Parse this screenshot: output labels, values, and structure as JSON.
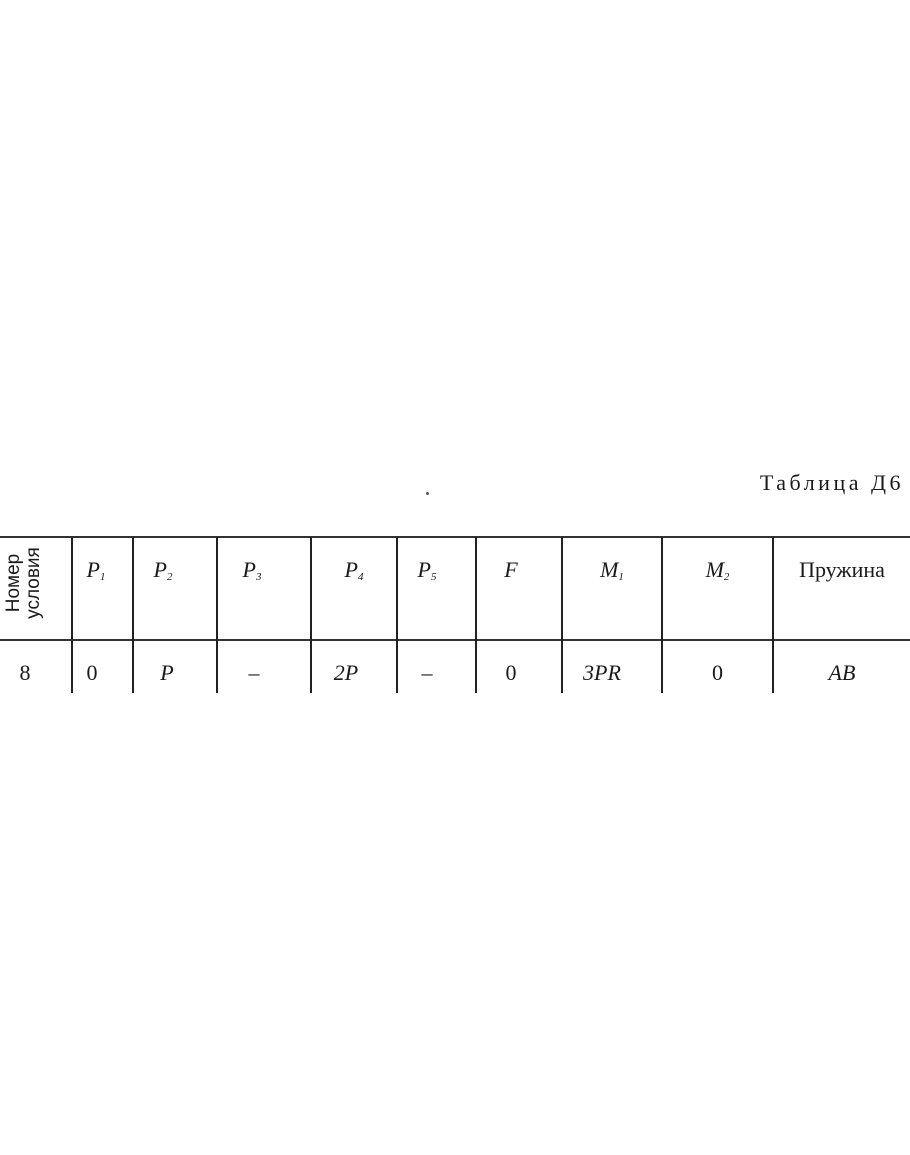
{
  "table_title": "Таблица Д6",
  "header": {
    "condition_number": [
      "Номер",
      "условия"
    ],
    "columns": [
      {
        "base": "P",
        "sub": "1"
      },
      {
        "base": "P",
        "sub": "2"
      },
      {
        "base": "P",
        "sub": "3"
      },
      {
        "base": "P",
        "sub": "4"
      },
      {
        "base": "P",
        "sub": "5"
      },
      {
        "base": "F",
        "sub": ""
      },
      {
        "base": "M",
        "sub": "1"
      },
      {
        "base": "M",
        "sub": "2"
      }
    ],
    "spring": "Пружина"
  },
  "rows": [
    {
      "condition": "8",
      "values": [
        "0",
        "P",
        "–",
        "2P",
        "–",
        "0",
        "3PR",
        "0"
      ],
      "spring": "AB"
    }
  ]
}
